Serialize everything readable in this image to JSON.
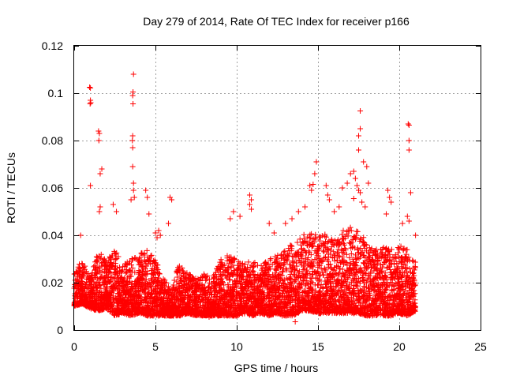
{
  "chart_data": {
    "type": "scatter",
    "title": "Day 279 of 2014, Rate Of TEC Index for receiver p166",
    "xlabel": "GPS time / hours",
    "ylabel": "ROTI / TECUs",
    "xlim": [
      0,
      25
    ],
    "ylim": [
      0,
      0.12
    ],
    "x_ticks": [
      0,
      5,
      10,
      15,
      20,
      25
    ],
    "x_tick_labels": [
      "0",
      "5",
      "10",
      "15",
      "20",
      "25"
    ],
    "y_ticks": [
      0,
      0.02,
      0.04,
      0.06,
      0.08,
      0.1,
      0.12
    ],
    "y_tick_labels": [
      "0",
      "0.02",
      "0.04",
      "0.06",
      "0.08",
      "0.1",
      "0.12"
    ],
    "grid": true,
    "marker": "+",
    "color": "#ff0000",
    "series": [
      {
        "name": "ROTI",
        "points": [
          [
            0.95,
            0.1025
          ],
          [
            1.0,
            0.1022
          ],
          [
            1.0,
            0.097
          ],
          [
            0.98,
            0.0955
          ],
          [
            1.02,
            0.096
          ],
          [
            1.5,
            0.084
          ],
          [
            1.55,
            0.083
          ],
          [
            1.52,
            0.08
          ],
          [
            1.7,
            0.068
          ],
          [
            1.6,
            0.066
          ],
          [
            1.0,
            0.061
          ],
          [
            1.6,
            0.052
          ],
          [
            1.55,
            0.05
          ],
          [
            0.4,
            0.04
          ],
          [
            3.65,
            0.108
          ],
          [
            3.62,
            0.1005
          ],
          [
            3.6,
            0.099
          ],
          [
            3.62,
            0.0955
          ],
          [
            3.6,
            0.082
          ],
          [
            3.58,
            0.08
          ],
          [
            3.6,
            0.077
          ],
          [
            3.6,
            0.069
          ],
          [
            3.65,
            0.062
          ],
          [
            3.65,
            0.059
          ],
          [
            3.7,
            0.056
          ],
          [
            4.4,
            0.059
          ],
          [
            4.5,
            0.056
          ],
          [
            3.5,
            0.055
          ],
          [
            4.6,
            0.049
          ],
          [
            5.9,
            0.056
          ],
          [
            6.0,
            0.055
          ],
          [
            5.8,
            0.045
          ],
          [
            5.2,
            0.042
          ],
          [
            5.0,
            0.041
          ],
          [
            5.3,
            0.04
          ],
          [
            5.1,
            0.039
          ],
          [
            2.4,
            0.053
          ],
          [
            2.6,
            0.05
          ],
          [
            9.8,
            0.05
          ],
          [
            9.6,
            0.047
          ],
          [
            10.2,
            0.048
          ],
          [
            10.8,
            0.057
          ],
          [
            10.9,
            0.055
          ],
          [
            10.8,
            0.053
          ],
          [
            10.9,
            0.051
          ],
          [
            12.0,
            0.045
          ],
          [
            12.3,
            0.041
          ],
          [
            13.0,
            0.045
          ],
          [
            13.4,
            0.047
          ],
          [
            13.8,
            0.05
          ],
          [
            14.2,
            0.052
          ],
          [
            14.5,
            0.061
          ],
          [
            14.7,
            0.0615
          ],
          [
            14.6,
            0.059
          ],
          [
            14.8,
            0.066
          ],
          [
            14.9,
            0.071
          ],
          [
            15.5,
            0.061
          ],
          [
            15.6,
            0.057
          ],
          [
            15.7,
            0.055
          ],
          [
            16.0,
            0.05
          ],
          [
            16.3,
            0.052
          ],
          [
            16.5,
            0.06
          ],
          [
            16.8,
            0.062
          ],
          [
            17.0,
            0.066
          ],
          [
            17.2,
            0.067
          ],
          [
            17.3,
            0.064
          ],
          [
            17.4,
            0.061
          ],
          [
            17.5,
            0.059
          ],
          [
            17.6,
            0.058
          ],
          [
            17.2,
            0.0555
          ],
          [
            17.6,
            0.0925
          ],
          [
            17.6,
            0.085
          ],
          [
            17.5,
            0.082
          ],
          [
            17.5,
            0.076
          ],
          [
            17.8,
            0.071
          ],
          [
            18.0,
            0.069
          ],
          [
            18.1,
            0.062
          ],
          [
            17.7,
            0.054
          ],
          [
            17.9,
            0.052
          ],
          [
            19.2,
            0.049
          ],
          [
            19.3,
            0.059
          ],
          [
            19.4,
            0.056
          ],
          [
            19.5,
            0.054
          ],
          [
            20.2,
            0.045
          ],
          [
            20.5,
            0.048
          ],
          [
            20.6,
            0.046
          ],
          [
            20.55,
            0.087
          ],
          [
            20.6,
            0.0865
          ],
          [
            20.6,
            0.08
          ],
          [
            20.6,
            0.076
          ],
          [
            20.7,
            0.058
          ],
          [
            21.0,
            0.04
          ],
          [
            13.6,
            0.0035
          ],
          [
            8.3,
            0.0055
          ],
          [
            12.8,
            0.006
          ]
        ],
        "band": [
          [
            0.0,
            0.01,
            0.024
          ],
          [
            0.5,
            0.011,
            0.03
          ],
          [
            1.0,
            0.009,
            0.022
          ],
          [
            1.5,
            0.008,
            0.034
          ],
          [
            2.0,
            0.009,
            0.03
          ],
          [
            2.5,
            0.006,
            0.034
          ],
          [
            3.0,
            0.007,
            0.028
          ],
          [
            3.5,
            0.006,
            0.03
          ],
          [
            4.0,
            0.007,
            0.032
          ],
          [
            4.5,
            0.006,
            0.034
          ],
          [
            5.0,
            0.006,
            0.03
          ],
          [
            5.5,
            0.006,
            0.022
          ],
          [
            6.0,
            0.006,
            0.016
          ],
          [
            6.2,
            0.006,
            0.024
          ],
          [
            6.5,
            0.006,
            0.028
          ],
          [
            7.0,
            0.007,
            0.024
          ],
          [
            7.5,
            0.006,
            0.022
          ],
          [
            8.0,
            0.006,
            0.024
          ],
          [
            8.5,
            0.006,
            0.022
          ],
          [
            9.0,
            0.006,
            0.03
          ],
          [
            9.5,
            0.006,
            0.032
          ],
          [
            10.0,
            0.006,
            0.03
          ],
          [
            10.5,
            0.007,
            0.028
          ],
          [
            11.0,
            0.006,
            0.03
          ],
          [
            11.5,
            0.007,
            0.028
          ],
          [
            12.0,
            0.006,
            0.03
          ],
          [
            12.5,
            0.007,
            0.032
          ],
          [
            13.0,
            0.006,
            0.034
          ],
          [
            13.5,
            0.006,
            0.038
          ],
          [
            14.0,
            0.008,
            0.04
          ],
          [
            14.5,
            0.008,
            0.042
          ],
          [
            15.0,
            0.007,
            0.04
          ],
          [
            15.5,
            0.007,
            0.042
          ],
          [
            16.0,
            0.007,
            0.04
          ],
          [
            16.5,
            0.007,
            0.042
          ],
          [
            17.0,
            0.007,
            0.044
          ],
          [
            17.5,
            0.007,
            0.042
          ],
          [
            18.0,
            0.006,
            0.038
          ],
          [
            18.5,
            0.006,
            0.034
          ],
          [
            19.0,
            0.006,
            0.036
          ],
          [
            19.5,
            0.006,
            0.034
          ],
          [
            20.0,
            0.007,
            0.036
          ],
          [
            20.5,
            0.006,
            0.034
          ],
          [
            21.0,
            0.008,
            0.03
          ]
        ]
      }
    ]
  }
}
